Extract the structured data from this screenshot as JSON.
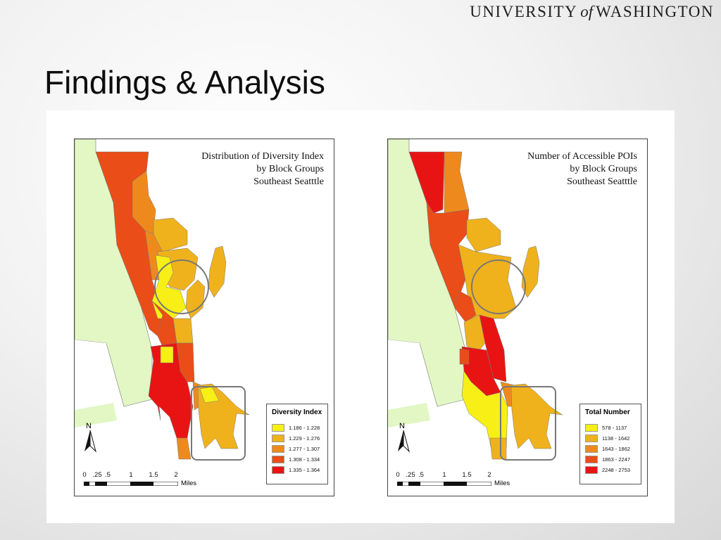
{
  "header": {
    "logo_pre": "UNIVERSITY",
    "logo_of": "of",
    "logo_post": "WASHINGTON"
  },
  "slide": {
    "title": "Findings & Analysis"
  },
  "maps": [
    {
      "title_lines": [
        "Distribution of Diversity Index",
        "by Block Groups",
        "Southeast Seatttle"
      ],
      "legend": {
        "title": "Diversity Index",
        "items": [
          {
            "label": "1.186 - 1.228",
            "color": "#f7ef16"
          },
          {
            "label": "1.229 - 1.276",
            "color": "#efb21d"
          },
          {
            "label": "1.277 - 1.307",
            "color": "#ee8a1d"
          },
          {
            "label": "1.308 - 1.334",
            "color": "#ea4d17"
          },
          {
            "label": "1.335 - 1.364",
            "color": "#e81414"
          }
        ]
      },
      "north_label": "N",
      "scale": {
        "ticks": [
          "0",
          ".25",
          ".5",
          "1",
          "1.5",
          "2"
        ],
        "units": "Miles"
      }
    },
    {
      "title_lines": [
        "Number of Accessible POIs",
        "by Block Groups",
        "Southeast Seatttle"
      ],
      "legend": {
        "title": "Total Number",
        "items": [
          {
            "label": "578 - 1137",
            "color": "#f7ef16"
          },
          {
            "label": "1138 - 1642",
            "color": "#efb21d"
          },
          {
            "label": "1643 - 1862",
            "color": "#ee8a1d"
          },
          {
            "label": "1863 - 2247",
            "color": "#ea4d17"
          },
          {
            "label": "2248 - 2753",
            "color": "#e81414"
          }
        ]
      },
      "north_label": "N",
      "scale": {
        "ticks": [
          "0",
          ".25",
          ".5",
          "1",
          "1.5",
          "2"
        ],
        "units": "Miles"
      }
    }
  ],
  "colors": {
    "land_background": "#e2f7c4",
    "class_1": "#f7ef16",
    "class_2": "#efb21d",
    "class_3": "#ee8a1d",
    "class_4": "#ea4d17",
    "class_5": "#e81414",
    "highlight_outline": "#777777"
  }
}
